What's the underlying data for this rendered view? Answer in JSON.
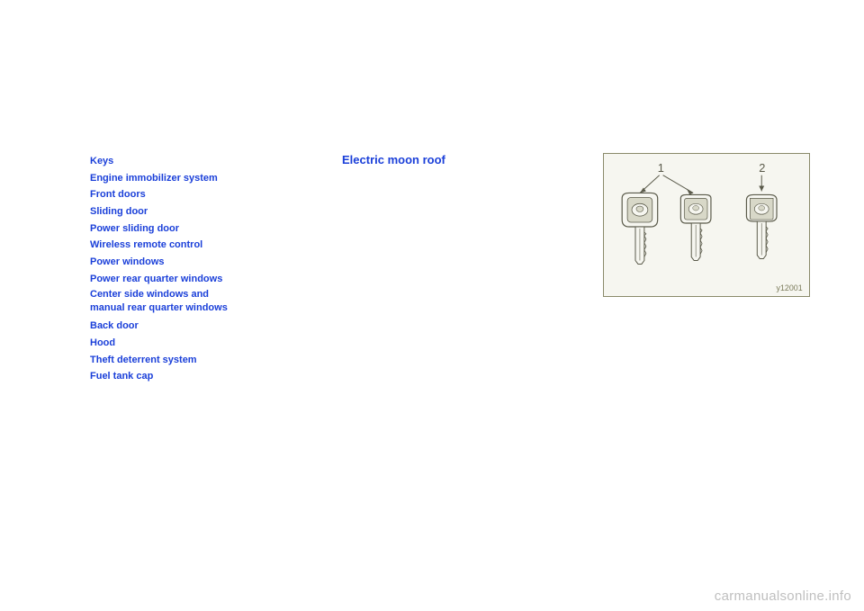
{
  "section_heading": "Electric moon roof",
  "toc": [
    "Keys",
    "Engine immobilizer system",
    "Front doors",
    "Sliding door",
    "Power sliding door",
    "Wireless remote control",
    "Power windows",
    "Power rear quarter windows",
    "Center side windows and\nmanual rear quarter windows",
    "Back door",
    "Hood",
    "Theft deterrent system",
    "Fuel tank cap"
  ],
  "figure": {
    "labels": [
      "1",
      "2"
    ],
    "label_color": "#5a5a4a",
    "key_fill": "#f6f6f0",
    "key_stroke": "#5a5a4a",
    "shade_fill": "#d8d8c8",
    "border_color": "#8a8a6a",
    "bg": "#f6f6f0",
    "code": "y12001"
  },
  "watermark": "carmanualsonline.info",
  "colors": {
    "link": "#1a3fd9",
    "page_bg": "#ffffff"
  }
}
